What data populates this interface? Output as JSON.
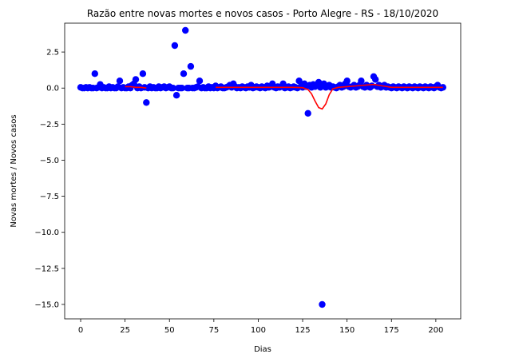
{
  "chart_data": {
    "type": "scatter",
    "title": "Razão entre novas mortes e novos casos - Porto Alegre - RS - 18/10/2020",
    "xlabel": "Dias",
    "ylabel": "Novas mortes / Novos casos",
    "xlim": [
      -9,
      214
    ],
    "ylim": [
      -16.0,
      4.5
    ],
    "xticks": [
      0,
      25,
      50,
      75,
      100,
      125,
      150,
      175,
      200
    ],
    "yticks": [
      2.5,
      0.0,
      -2.5,
      -5.0,
      -7.5,
      -10.0,
      -12.5,
      -15.0
    ],
    "xtick_labels": [
      "0",
      "25",
      "50",
      "75",
      "100",
      "125",
      "150",
      "175",
      "200"
    ],
    "ytick_labels": [
      "2.5",
      "0.0",
      "−2.5",
      "−5.0",
      "−7.5",
      "−10.0",
      "−12.5",
      "−15.0"
    ],
    "grid": false,
    "legend": "none",
    "colors": {
      "points": "#0000ff",
      "trend": "#ff0000",
      "axes": "#000000"
    },
    "series": [
      {
        "kind": "scatter",
        "x": [
          0,
          1,
          2,
          3,
          4,
          5,
          6,
          7,
          8,
          9,
          10,
          11,
          12,
          13,
          14,
          15,
          16,
          17,
          18,
          19,
          20,
          21,
          22,
          23,
          24,
          25,
          26,
          27,
          28,
          29,
          30,
          31,
          32,
          33,
          34,
          35,
          36,
          37,
          38,
          39,
          40,
          41,
          42,
          43,
          44,
          45,
          46,
          47,
          48,
          49,
          50,
          51,
          52,
          53,
          54,
          55,
          56,
          57,
          58,
          59,
          60,
          61,
          62,
          63,
          64,
          65,
          66,
          67,
          68,
          69,
          70,
          71,
          72,
          73,
          74,
          75,
          76,
          77,
          78,
          79,
          80,
          81,
          82,
          83,
          84,
          85,
          86,
          87,
          88,
          89,
          90,
          91,
          92,
          93,
          94,
          95,
          96,
          97,
          98,
          99,
          100,
          101,
          102,
          103,
          104,
          105,
          106,
          107,
          108,
          109,
          110,
          111,
          112,
          113,
          114,
          115,
          116,
          117,
          118,
          119,
          120,
          121,
          122,
          123,
          124,
          125,
          126,
          127,
          128,
          129,
          130,
          131,
          132,
          133,
          134,
          135,
          136,
          137,
          138,
          139,
          140,
          141,
          142,
          143,
          144,
          145,
          146,
          147,
          148,
          149,
          150,
          151,
          152,
          153,
          154,
          155,
          156,
          157,
          158,
          159,
          160,
          161,
          162,
          163,
          164,
          165,
          166,
          167,
          168,
          169,
          170,
          171,
          172,
          173,
          174,
          175,
          176,
          177,
          178,
          179,
          180,
          181,
          182,
          183,
          184,
          185,
          186,
          187,
          188,
          189,
          190,
          191,
          192,
          193,
          194,
          195,
          196,
          197,
          198,
          199,
          200,
          201,
          202,
          203,
          204
        ],
        "y": [
          0.05,
          0.0,
          0.0,
          0.05,
          0.0,
          0.05,
          0.0,
          0.0,
          1.0,
          0.0,
          0.05,
          0.25,
          0.0,
          0.05,
          0.0,
          0.0,
          0.1,
          0.0,
          0.05,
          0.0,
          0.0,
          0.1,
          0.5,
          0.0,
          0.05,
          0.0,
          0.0,
          0.1,
          0.0,
          0.2,
          0.3,
          0.6,
          0.0,
          0.1,
          0.0,
          1.0,
          0.05,
          -1.0,
          0.0,
          0.1,
          0.0,
          0.05,
          0.0,
          0.0,
          0.1,
          0.0,
          0.05,
          0.1,
          0.0,
          0.05,
          0.1,
          0.0,
          0.0,
          2.95,
          -0.5,
          0.0,
          0.0,
          0.0,
          1.0,
          4.0,
          0.0,
          0.0,
          1.5,
          0.0,
          0.0,
          0.05,
          0.1,
          0.5,
          0.0,
          0.05,
          0.0,
          0.0,
          0.1,
          0.0,
          0.05,
          0.0,
          0.15,
          0.0,
          0.05,
          0.1,
          0.0,
          0.0,
          0.05,
          0.1,
          0.2,
          0.05,
          0.3,
          0.1,
          0.0,
          0.05,
          0.0,
          0.1,
          0.05,
          0.0,
          0.1,
          0.05,
          0.2,
          0.0,
          0.05,
          0.1,
          0.05,
          0.0,
          0.1,
          0.05,
          0.0,
          0.15,
          0.05,
          0.1,
          0.3,
          0.05,
          0.0,
          0.1,
          0.05,
          0.1,
          0.3,
          0.0,
          0.05,
          0.1,
          0.0,
          0.05,
          0.1,
          0.05,
          0.0,
          0.5,
          0.1,
          0.05,
          0.3,
          0.1,
          -1.75,
          0.2,
          0.05,
          0.25,
          0.1,
          0.2,
          0.4,
          0.05,
          -15.0,
          0.3,
          0.05,
          0.1,
          0.2,
          0.05,
          0.1,
          0.05,
          0.0,
          0.1,
          0.2,
          0.05,
          0.1,
          0.3,
          0.5,
          0.1,
          0.05,
          0.1,
          0.2,
          0.05,
          0.1,
          0.2,
          0.5,
          0.1,
          0.05,
          0.2,
          0.1,
          0.05,
          0.15,
          0.8,
          0.6,
          0.1,
          0.2,
          0.05,
          0.1,
          0.2,
          0.05,
          0.1,
          0.05,
          0.0,
          0.1,
          0.05,
          0.0,
          0.1,
          0.05,
          0.0,
          0.1,
          0.05,
          0.0,
          0.1,
          0.05,
          0.0,
          0.1,
          0.05,
          0.0,
          0.1,
          0.05,
          0.0,
          0.1,
          0.05,
          0.0,
          0.1,
          0.05,
          0.0,
          0.1,
          0.2,
          0.05,
          0.0,
          0.05
        ]
      },
      {
        "kind": "line",
        "segments": [
          {
            "x": [
              25,
              28,
              31,
              34,
              37
            ],
            "y": [
              0.1,
              0.1,
              0.05,
              0.05,
              0.0
            ]
          },
          {
            "x": [
              76,
              80,
              90,
              100,
              110,
              120,
              125,
              128,
              130,
              132,
              134,
              136,
              138,
              140,
              142,
              145,
              150,
              155,
              160,
              165,
              170,
              175,
              180,
              185,
              190,
              195,
              200,
              204
            ],
            "y": [
              0.05,
              0.05,
              0.05,
              0.05,
              0.05,
              0.05,
              0.03,
              -0.1,
              -0.4,
              -0.9,
              -1.35,
              -1.45,
              -1.1,
              -0.45,
              -0.05,
              0.05,
              0.1,
              0.15,
              0.2,
              0.25,
              0.15,
              0.05,
              0.05,
              0.05,
              0.05,
              0.05,
              0.05,
              0.05
            ]
          }
        ]
      }
    ]
  }
}
